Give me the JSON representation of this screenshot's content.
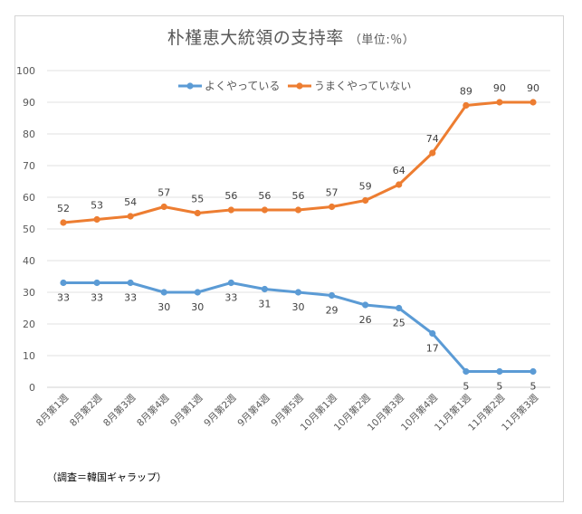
{
  "chart_data": {
    "type": "line",
    "title": "朴槿恵大統領の支持率",
    "title_unit": "（単位:％）",
    "xlabel": "",
    "ylabel": "",
    "ylim": [
      0,
      100
    ],
    "yticks": [
      0,
      10,
      20,
      30,
      40,
      50,
      60,
      70,
      80,
      90,
      100
    ],
    "grid": true,
    "legend_position": "top-center",
    "categories": [
      "8月第1週",
      "8月第2週",
      "8月第3週",
      "8月第4週",
      "9月第1週",
      "9月第2週",
      "9月第4週",
      "9月第5週",
      "10月第1週",
      "10月第2週",
      "10月第3週",
      "10月第4週",
      "11月第1週",
      "11月第2週",
      "11月第3週"
    ],
    "series": [
      {
        "name": "よくやっている",
        "color": "#5b9bd5",
        "label_position": "below",
        "values": [
          33,
          33,
          33,
          30,
          30,
          33,
          31,
          30,
          29,
          26,
          25,
          17,
          5,
          5,
          5
        ]
      },
      {
        "name": "うまくやっていない",
        "color": "#ed7d31",
        "label_position": "above",
        "values": [
          52,
          53,
          54,
          57,
          55,
          56,
          56,
          56,
          57,
          59,
          64,
          74,
          89,
          90,
          90
        ]
      }
    ],
    "source_note": "（調査＝韓国ギャラップ）"
  }
}
